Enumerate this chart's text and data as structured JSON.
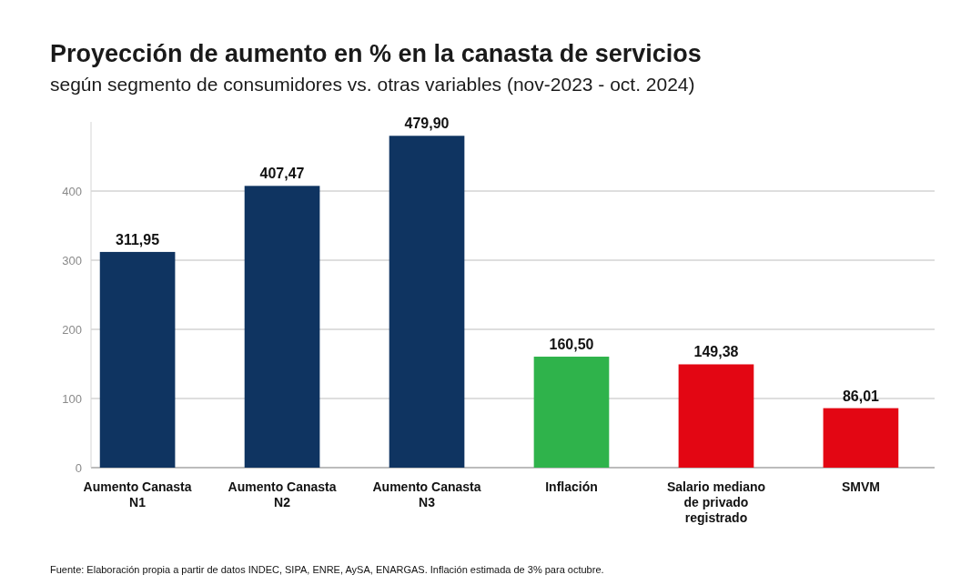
{
  "chart_data": {
    "type": "bar",
    "title": "Proyección de aumento en % en la canasta de servicios",
    "subtitle": "según segmento de consumidores vs. otras variables (nov-2023 - oct. 2024)",
    "categories": [
      "Aumento Canasta N1",
      "Aumento Canasta N2",
      "Aumento Canasta N3",
      "Inflación",
      "Salario mediano de privado registrado",
      "SMVM"
    ],
    "values": [
      311.95,
      407.47,
      479.9,
      160.5,
      149.38,
      86.01
    ],
    "value_labels": [
      "311,95",
      "407,47",
      "479,90",
      "160,50",
      "149,38",
      "86,01"
    ],
    "colors": [
      "#0f3461",
      "#0f3461",
      "#0f3461",
      "#2fb34b",
      "#e30613",
      "#e30613"
    ],
    "ylim": [
      0,
      500
    ],
    "yticks": [
      0,
      100,
      200,
      300,
      400
    ],
    "grid": "y",
    "annotations": [
      "Fuente: Elaboración propia a partir de datos INDEC, SIPA, ENRE, AySA, ENARGAS. Inflación estimada de 3% para octubre."
    ]
  }
}
